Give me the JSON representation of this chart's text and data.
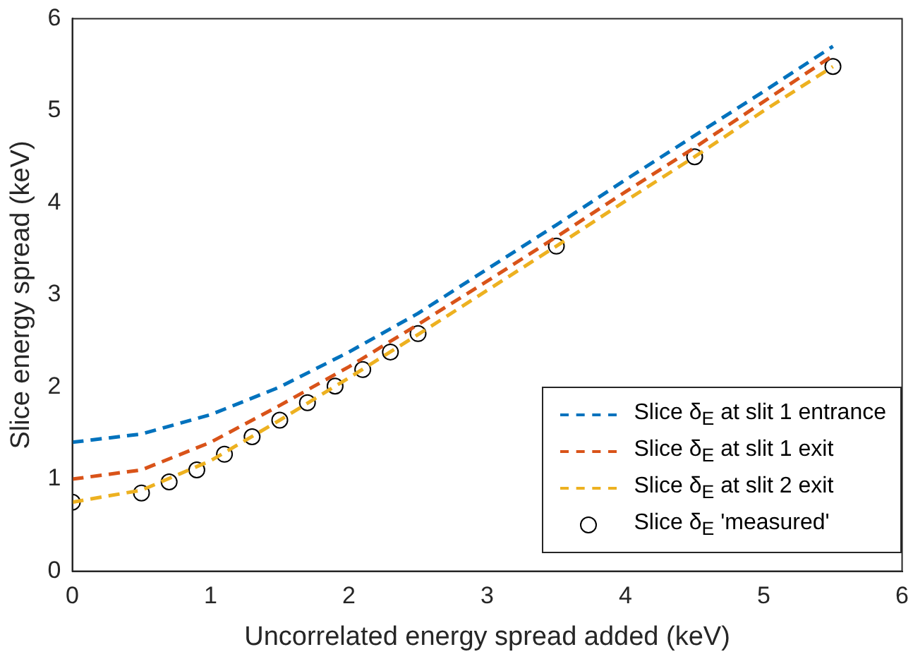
{
  "chart_data": {
    "type": "line",
    "xlabel": "Uncorrelated energy spread added (keV)",
    "ylabel": "Slice energy spread (keV)",
    "xlim": [
      0,
      6
    ],
    "xticks": [
      0,
      1,
      2,
      3,
      4,
      5,
      6
    ],
    "ylim": [
      0,
      6
    ],
    "yticks": [
      0,
      1,
      2,
      3,
      4,
      5,
      6
    ],
    "legend": "bottom right",
    "line_style": "dashed",
    "grid": false,
    "series": [
      {
        "name": "Slice δ$_{E}$ at slit 1 entrance",
        "color": "#0072bd",
        "x": [
          0,
          0.5,
          1,
          1.5,
          2,
          2.5,
          3,
          3.5,
          4,
          4.5,
          5,
          5.5
        ],
        "values": [
          1.4,
          1.49,
          1.7,
          2.0,
          2.38,
          2.8,
          3.28,
          3.76,
          4.25,
          4.73,
          5.21,
          5.7
        ]
      },
      {
        "name": "Slice δ$_{E}$ at slit 1 exit",
        "color": "#d95319",
        "x": [
          0,
          0.5,
          1,
          1.5,
          2,
          2.5,
          3,
          3.5,
          4,
          4.5,
          5,
          5.5
        ],
        "values": [
          1.0,
          1.1,
          1.4,
          1.8,
          2.22,
          2.68,
          3.15,
          3.63,
          4.12,
          4.6,
          5.1,
          5.6
        ]
      },
      {
        "name": "Slice δ$_{E}$ at slit 2 exit",
        "color": "#edb120",
        "x": [
          0,
          0.5,
          1,
          1.5,
          2,
          2.5,
          3,
          3.5,
          4,
          4.5,
          5,
          5.5
        ],
        "values": [
          0.75,
          0.88,
          1.2,
          1.64,
          2.1,
          2.57,
          3.05,
          3.53,
          4.02,
          4.5,
          5.0,
          5.48
        ]
      },
      {
        "name": "Slice δ$_{E}$ 'measured'",
        "type": "scatter",
        "marker": "circle",
        "color": "#000000",
        "x": [
          0,
          0.5,
          0.7,
          0.9,
          1.1,
          1.3,
          1.5,
          1.7,
          1.9,
          2.1,
          2.3,
          2.5,
          3.5,
          4.5,
          5.5
        ],
        "values": [
          0.75,
          0.85,
          0.97,
          1.1,
          1.27,
          1.46,
          1.64,
          1.83,
          2.01,
          2.19,
          2.38,
          2.58,
          3.53,
          4.5,
          5.48
        ]
      }
    ]
  }
}
